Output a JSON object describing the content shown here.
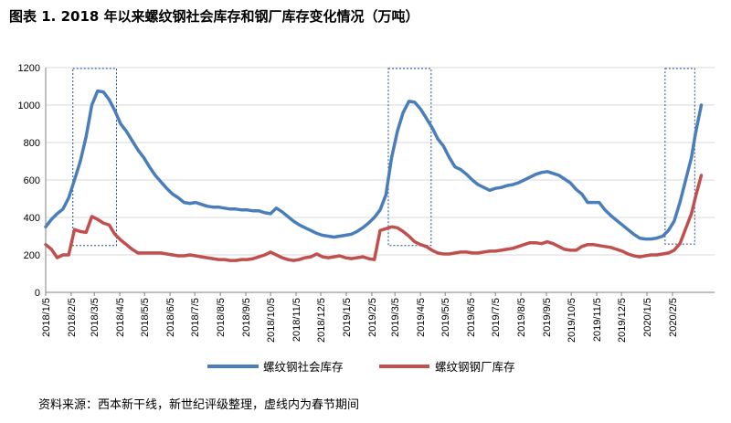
{
  "title": "图表 1. 2018 年以来螺纹钢社会库存和钢厂库存变化情况（万吨）",
  "source": "资料来源：西本新干线，新世纪评级整理，虚线内为春节期间",
  "colors": {
    "social": "#4a7ebb",
    "mill": "#c0504d",
    "box": "#1f4e8c",
    "axis": "#808080",
    "grid": "#d9d9d9"
  },
  "chart_data": {
    "type": "line",
    "title": "图表 1. 2018 年以来螺纹钢社会库存和钢厂库存变化情况（万吨）",
    "xlabel": "",
    "ylabel": "",
    "ylim": [
      0,
      1200
    ],
    "yticks": [
      0,
      200,
      400,
      600,
      800,
      1000,
      1200
    ],
    "xticks": [
      "2018/1/5",
      "2018/2/5",
      "2018/3/5",
      "2018/4/5",
      "2018/5/5",
      "2018/6/5",
      "2018/7/5",
      "2018/8/5",
      "2018/9/5",
      "2018/10/5",
      "2018/11/5",
      "2018/12/5",
      "2019/1/5",
      "2019/2/5",
      "2019/3/5",
      "2019/4/5",
      "2019/5/5",
      "2019/6/5",
      "2019/7/5",
      "2019/8/5",
      "2019/9/5",
      "2019/10/5",
      "2019/11/5",
      "2019/12/5",
      "2020/1/5",
      "2020/2/5"
    ],
    "x_range": [
      "2018/1/5",
      "2020/2/25"
    ],
    "grid": "horizontal",
    "legend": "bottom",
    "annotations": [
      "dashed boxes mark Spring Festival periods"
    ],
    "spring_festival_periods": [
      {
        "start": "2018/2/7",
        "end": "2018/4/1",
        "ymin": 250,
        "ymax": 1195
      },
      {
        "start": "2019/2/25",
        "end": "2019/4/18",
        "ymin": 250,
        "ymax": 1195
      },
      {
        "start": "2020/1/27",
        "end": "2020/3/3",
        "ymin": 258,
        "ymax": 1195
      }
    ],
    "series": [
      {
        "name": "螺纹钢社会库存",
        "color": "#4a7ebb",
        "points": [
          [
            "2018/1/5",
            350
          ],
          [
            "2018/1/12",
            390
          ],
          [
            "2018/1/19",
            420
          ],
          [
            "2018/1/26",
            445
          ],
          [
            "2018/2/2",
            505
          ],
          [
            "2018/2/9",
            600
          ],
          [
            "2018/2/16",
            700
          ],
          [
            "2018/2/23",
            830
          ],
          [
            "2018/3/2",
            1000
          ],
          [
            "2018/3/9",
            1075
          ],
          [
            "2018/3/16",
            1070
          ],
          [
            "2018/3/23",
            1030
          ],
          [
            "2018/3/30",
            970
          ],
          [
            "2018/4/6",
            900
          ],
          [
            "2018/4/13",
            860
          ],
          [
            "2018/4/20",
            810
          ],
          [
            "2018/4/27",
            760
          ],
          [
            "2018/5/4",
            720
          ],
          [
            "2018/5/11",
            670
          ],
          [
            "2018/5/18",
            625
          ],
          [
            "2018/5/25",
            590
          ],
          [
            "2018/6/1",
            555
          ],
          [
            "2018/6/8",
            525
          ],
          [
            "2018/6/15",
            505
          ],
          [
            "2018/6/22",
            480
          ],
          [
            "2018/6/29",
            475
          ],
          [
            "2018/7/6",
            480
          ],
          [
            "2018/7/13",
            470
          ],
          [
            "2018/7/20",
            460
          ],
          [
            "2018/7/27",
            455
          ],
          [
            "2018/8/3",
            455
          ],
          [
            "2018/8/10",
            450
          ],
          [
            "2018/8/17",
            445
          ],
          [
            "2018/8/24",
            445
          ],
          [
            "2018/8/31",
            440
          ],
          [
            "2018/9/7",
            440
          ],
          [
            "2018/9/14",
            435
          ],
          [
            "2018/9/21",
            435
          ],
          [
            "2018/9/28",
            425
          ],
          [
            "2018/10/5",
            420
          ],
          [
            "2018/10/12",
            450
          ],
          [
            "2018/10/19",
            430
          ],
          [
            "2018/10/26",
            405
          ],
          [
            "2018/11/2",
            380
          ],
          [
            "2018/11/9",
            360
          ],
          [
            "2018/11/16",
            345
          ],
          [
            "2018/11/23",
            330
          ],
          [
            "2018/11/30",
            315
          ],
          [
            "2018/12/7",
            305
          ],
          [
            "2018/12/14",
            300
          ],
          [
            "2018/12/21",
            295
          ],
          [
            "2018/12/28",
            300
          ],
          [
            "2019/1/4",
            305
          ],
          [
            "2019/1/11",
            310
          ],
          [
            "2019/1/18",
            325
          ],
          [
            "2019/1/25",
            345
          ],
          [
            "2019/2/1",
            370
          ],
          [
            "2019/2/8",
            400
          ],
          [
            "2019/2/15",
            440
          ],
          [
            "2019/2/22",
            520
          ],
          [
            "2019/3/1",
            720
          ],
          [
            "2019/3/8",
            860
          ],
          [
            "2019/3/15",
            960
          ],
          [
            "2019/3/22",
            1020
          ],
          [
            "2019/3/29",
            1015
          ],
          [
            "2019/4/5",
            980
          ],
          [
            "2019/4/12",
            930
          ],
          [
            "2019/4/19",
            880
          ],
          [
            "2019/4/26",
            820
          ],
          [
            "2019/5/3",
            780
          ],
          [
            "2019/5/10",
            720
          ],
          [
            "2019/5/17",
            670
          ],
          [
            "2019/5/24",
            655
          ],
          [
            "2019/5/31",
            630
          ],
          [
            "2019/6/7",
            600
          ],
          [
            "2019/6/14",
            575
          ],
          [
            "2019/6/21",
            560
          ],
          [
            "2019/6/28",
            545
          ],
          [
            "2019/7/5",
            555
          ],
          [
            "2019/7/12",
            560
          ],
          [
            "2019/7/19",
            570
          ],
          [
            "2019/7/26",
            575
          ],
          [
            "2019/8/2",
            585
          ],
          [
            "2019/8/9",
            600
          ],
          [
            "2019/8/16",
            615
          ],
          [
            "2019/8/23",
            630
          ],
          [
            "2019/8/30",
            640
          ],
          [
            "2019/9/6",
            645
          ],
          [
            "2019/9/13",
            635
          ],
          [
            "2019/9/20",
            625
          ],
          [
            "2019/9/27",
            605
          ],
          [
            "2019/10/4",
            585
          ],
          [
            "2019/10/11",
            550
          ],
          [
            "2019/10/18",
            525
          ],
          [
            "2019/10/25",
            480
          ],
          [
            "2019/11/1",
            480
          ],
          [
            "2019/11/8",
            480
          ],
          [
            "2019/11/15",
            440
          ],
          [
            "2019/11/22",
            410
          ],
          [
            "2019/11/29",
            385
          ],
          [
            "2019/12/6",
            360
          ],
          [
            "2019/12/13",
            335
          ],
          [
            "2019/12/20",
            310
          ],
          [
            "2019/12/27",
            290
          ],
          [
            "2020/1/3",
            285
          ],
          [
            "2020/1/10",
            285
          ],
          [
            "2020/1/17",
            290
          ],
          [
            "2020/1/24",
            300
          ],
          [
            "2020/1/31",
            330
          ],
          [
            "2020/2/7",
            380
          ],
          [
            "2020/2/14",
            480
          ],
          [
            "2020/2/21",
            600
          ],
          [
            "2020/2/28",
            720
          ],
          [
            "2020/3/4",
            850
          ],
          [
            "2020/3/11",
            1000
          ]
        ]
      },
      {
        "name": "螺纹钢钢厂库存",
        "color": "#c0504d",
        "points": [
          [
            "2018/1/5",
            255
          ],
          [
            "2018/1/12",
            230
          ],
          [
            "2018/1/19",
            185
          ],
          [
            "2018/1/26",
            200
          ],
          [
            "2018/2/2",
            200
          ],
          [
            "2018/2/9",
            335
          ],
          [
            "2018/2/16",
            325
          ],
          [
            "2018/2/23",
            320
          ],
          [
            "2018/3/2",
            405
          ],
          [
            "2018/3/9",
            390
          ],
          [
            "2018/3/16",
            370
          ],
          [
            "2018/3/23",
            360
          ],
          [
            "2018/3/30",
            310
          ],
          [
            "2018/4/6",
            280
          ],
          [
            "2018/4/13",
            255
          ],
          [
            "2018/4/20",
            230
          ],
          [
            "2018/4/27",
            210
          ],
          [
            "2018/5/4",
            210
          ],
          [
            "2018/5/11",
            210
          ],
          [
            "2018/5/18",
            210
          ],
          [
            "2018/5/25",
            210
          ],
          [
            "2018/6/1",
            205
          ],
          [
            "2018/6/8",
            200
          ],
          [
            "2018/6/15",
            195
          ],
          [
            "2018/6/22",
            195
          ],
          [
            "2018/6/29",
            200
          ],
          [
            "2018/7/6",
            195
          ],
          [
            "2018/7/13",
            190
          ],
          [
            "2018/7/20",
            185
          ],
          [
            "2018/7/27",
            180
          ],
          [
            "2018/8/3",
            175
          ],
          [
            "2018/8/10",
            175
          ],
          [
            "2018/8/17",
            170
          ],
          [
            "2018/8/24",
            170
          ],
          [
            "2018/8/31",
            175
          ],
          [
            "2018/9/7",
            175
          ],
          [
            "2018/9/14",
            180
          ],
          [
            "2018/9/21",
            190
          ],
          [
            "2018/9/28",
            200
          ],
          [
            "2018/10/5",
            215
          ],
          [
            "2018/10/12",
            200
          ],
          [
            "2018/10/19",
            185
          ],
          [
            "2018/10/26",
            175
          ],
          [
            "2018/11/2",
            170
          ],
          [
            "2018/11/9",
            175
          ],
          [
            "2018/11/16",
            185
          ],
          [
            "2018/11/23",
            190
          ],
          [
            "2018/11/30",
            205
          ],
          [
            "2018/12/7",
            190
          ],
          [
            "2018/12/14",
            185
          ],
          [
            "2018/12/21",
            190
          ],
          [
            "2018/12/28",
            195
          ],
          [
            "2019/1/4",
            185
          ],
          [
            "2019/1/11",
            180
          ],
          [
            "2019/1/18",
            185
          ],
          [
            "2019/1/25",
            190
          ],
          [
            "2019/2/1",
            180
          ],
          [
            "2019/2/8",
            175
          ],
          [
            "2019/2/15",
            330
          ],
          [
            "2019/2/22",
            340
          ],
          [
            "2019/3/1",
            350
          ],
          [
            "2019/3/8",
            345
          ],
          [
            "2019/3/15",
            325
          ],
          [
            "2019/3/22",
            300
          ],
          [
            "2019/3/29",
            270
          ],
          [
            "2019/4/5",
            255
          ],
          [
            "2019/4/12",
            245
          ],
          [
            "2019/4/19",
            225
          ],
          [
            "2019/4/26",
            210
          ],
          [
            "2019/5/3",
            205
          ],
          [
            "2019/5/10",
            205
          ],
          [
            "2019/5/17",
            210
          ],
          [
            "2019/5/24",
            215
          ],
          [
            "2019/5/31",
            215
          ],
          [
            "2019/6/7",
            210
          ],
          [
            "2019/6/14",
            210
          ],
          [
            "2019/6/21",
            215
          ],
          [
            "2019/6/28",
            220
          ],
          [
            "2019/7/5",
            220
          ],
          [
            "2019/7/12",
            225
          ],
          [
            "2019/7/19",
            230
          ],
          [
            "2019/7/26",
            235
          ],
          [
            "2019/8/2",
            245
          ],
          [
            "2019/8/9",
            255
          ],
          [
            "2019/8/16",
            265
          ],
          [
            "2019/8/23",
            265
          ],
          [
            "2019/8/30",
            260
          ],
          [
            "2019/9/6",
            270
          ],
          [
            "2019/9/13",
            260
          ],
          [
            "2019/9/20",
            245
          ],
          [
            "2019/9/27",
            230
          ],
          [
            "2019/10/4",
            225
          ],
          [
            "2019/10/11",
            225
          ],
          [
            "2019/10/18",
            245
          ],
          [
            "2019/10/25",
            255
          ],
          [
            "2019/11/1",
            255
          ],
          [
            "2019/11/8",
            250
          ],
          [
            "2019/11/15",
            245
          ],
          [
            "2019/11/22",
            240
          ],
          [
            "2019/11/29",
            230
          ],
          [
            "2019/12/6",
            220
          ],
          [
            "2019/12/13",
            205
          ],
          [
            "2019/12/20",
            195
          ],
          [
            "2019/12/27",
            190
          ],
          [
            "2020/1/3",
            195
          ],
          [
            "2020/1/10",
            200
          ],
          [
            "2020/1/17",
            200
          ],
          [
            "2020/1/24",
            205
          ],
          [
            "2020/1/31",
            210
          ],
          [
            "2020/2/7",
            225
          ],
          [
            "2020/2/14",
            260
          ],
          [
            "2020/2/21",
            340
          ],
          [
            "2020/2/28",
            420
          ],
          [
            "2020/3/4",
            510
          ],
          [
            "2020/3/11",
            625
          ]
        ]
      }
    ]
  }
}
